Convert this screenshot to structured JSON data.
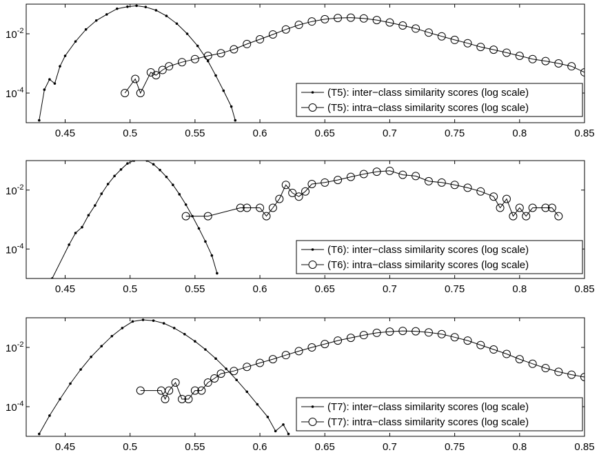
{
  "chart_data": [
    {
      "type": "line",
      "yscale": "log",
      "xlim": [
        0.42,
        0.85
      ],
      "ylim": [
        1e-05,
        0.1
      ],
      "xticks": [
        0.45,
        0.5,
        0.55,
        0.6,
        0.65,
        0.7,
        0.75,
        0.8,
        0.85
      ],
      "xtick_labels": [
        "0.45",
        "0.5",
        "0.55",
        "0.6",
        "0.65",
        "0.7",
        "0.75",
        "0.8",
        "0.85"
      ],
      "yticks": [
        {
          "base": "10",
          "exp": "-2",
          "value": 0.01
        },
        {
          "base": "10",
          "exp": "-4",
          "value": 0.0001
        }
      ],
      "grid": false,
      "legend_position": "bottom-right",
      "series": [
        {
          "name": "(T5): inter−class similarity scores (log scale)",
          "marker": "dot",
          "x": [
            0.43,
            0.434,
            0.438,
            0.442,
            0.446,
            0.45,
            0.458,
            0.466,
            0.474,
            0.482,
            0.49,
            0.498,
            0.505,
            0.512,
            0.52,
            0.528,
            0.536,
            0.544,
            0.552,
            0.56,
            0.566,
            0.572,
            0.578,
            0.581
          ],
          "y": [
            1.2e-05,
            0.00013,
            0.00029,
            0.00021,
            0.0008,
            0.0018,
            0.0055,
            0.014,
            0.028,
            0.045,
            0.07,
            0.082,
            0.088,
            0.08,
            0.062,
            0.04,
            0.022,
            0.01,
            0.0039,
            0.0012,
            0.00039,
            0.00012,
            3.5e-05,
            1.2e-05
          ]
        },
        {
          "name": "(T5): intra−class similarity scores (log scale)",
          "marker": "circle",
          "x": [
            0.496,
            0.504,
            0.508,
            0.516,
            0.52,
            0.525,
            0.53,
            0.54,
            0.55,
            0.56,
            0.57,
            0.58,
            0.59,
            0.6,
            0.61,
            0.62,
            0.63,
            0.64,
            0.65,
            0.66,
            0.67,
            0.68,
            0.69,
            0.7,
            0.71,
            0.72,
            0.73,
            0.74,
            0.75,
            0.76,
            0.77,
            0.78,
            0.79,
            0.8,
            0.81,
            0.82,
            0.83,
            0.84,
            0.85
          ],
          "y": [
            0.0001,
            0.0003,
            0.0001,
            0.0005,
            0.0004,
            0.0006,
            0.0008,
            0.0011,
            0.0014,
            0.0018,
            0.0022,
            0.003,
            0.0045,
            0.0065,
            0.0095,
            0.014,
            0.02,
            0.026,
            0.031,
            0.034,
            0.035,
            0.033,
            0.029,
            0.024,
            0.019,
            0.015,
            0.011,
            0.0082,
            0.0062,
            0.0048,
            0.0036,
            0.0029,
            0.0023,
            0.0018,
            0.0014,
            0.0012,
            0.001,
            0.0008,
            0.0005
          ]
        }
      ]
    },
    {
      "type": "line",
      "yscale": "log",
      "xlim": [
        0.42,
        0.85
      ],
      "ylim": [
        1e-05,
        0.1
      ],
      "xticks": [
        0.45,
        0.5,
        0.55,
        0.6,
        0.65,
        0.7,
        0.75,
        0.8,
        0.85
      ],
      "xtick_labels": [
        "0.45",
        "0.5",
        "0.55",
        "0.6",
        "0.65",
        "0.7",
        "0.75",
        "0.8",
        "0.85"
      ],
      "yticks": [
        {
          "base": "10",
          "exp": "-2",
          "value": 0.01
        },
        {
          "base": "10",
          "exp": "-4",
          "value": 0.0001
        }
      ],
      "grid": false,
      "legend_position": "bottom-right",
      "series": [
        {
          "name": "(T6): inter−class similarity scores (log scale)",
          "marker": "dot",
          "x": [
            0.44,
            0.453,
            0.458,
            0.463,
            0.468,
            0.473,
            0.478,
            0.483,
            0.488,
            0.493,
            0.498,
            0.503,
            0.508,
            0.513,
            0.518,
            0.523,
            0.528,
            0.533,
            0.538,
            0.543,
            0.548,
            0.553,
            0.558,
            0.563,
            0.567
          ],
          "y": [
            1e-05,
            0.00014,
            0.00035,
            0.00055,
            0.0014,
            0.003,
            0.0075,
            0.016,
            0.03,
            0.05,
            0.08,
            0.1,
            0.11,
            0.1,
            0.075,
            0.048,
            0.028,
            0.015,
            0.0072,
            0.0032,
            0.0013,
            0.0005,
            0.00018,
            6e-05,
            1.5e-05
          ]
        },
        {
          "name": "(T6): intra−class similarity scores (log scale)",
          "marker": "circle",
          "x": [
            0.543,
            0.56,
            0.585,
            0.59,
            0.6,
            0.605,
            0.61,
            0.615,
            0.62,
            0.625,
            0.63,
            0.635,
            0.64,
            0.65,
            0.66,
            0.67,
            0.68,
            0.69,
            0.7,
            0.71,
            0.72,
            0.73,
            0.74,
            0.75,
            0.76,
            0.77,
            0.78,
            0.785,
            0.79,
            0.795,
            0.8,
            0.805,
            0.81,
            0.82,
            0.825,
            0.83
          ],
          "y": [
            0.0013,
            0.0013,
            0.0025,
            0.0025,
            0.0025,
            0.0013,
            0.0025,
            0.005,
            0.015,
            0.008,
            0.006,
            0.009,
            0.016,
            0.018,
            0.022,
            0.028,
            0.035,
            0.042,
            0.045,
            0.033,
            0.03,
            0.02,
            0.018,
            0.015,
            0.012,
            0.009,
            0.006,
            0.0025,
            0.005,
            0.0013,
            0.0025,
            0.0013,
            0.0025,
            0.0025,
            0.0025,
            0.0013
          ]
        }
      ]
    },
    {
      "type": "line",
      "yscale": "log",
      "xlim": [
        0.42,
        0.85
      ],
      "ylim": [
        1e-05,
        0.1
      ],
      "xticks": [
        0.45,
        0.5,
        0.55,
        0.6,
        0.65,
        0.7,
        0.75,
        0.8,
        0.85
      ],
      "xtick_labels": [
        "0.45",
        "0.5",
        "0.55",
        "0.6",
        "0.65",
        "0.7",
        "0.75",
        "0.8",
        "0.85"
      ],
      "yticks": [
        {
          "base": "10",
          "exp": "-2",
          "value": 0.01
        },
        {
          "base": "10",
          "exp": "-4",
          "value": 0.0001
        }
      ],
      "grid": false,
      "legend_position": "bottom-right",
      "series": [
        {
          "name": "(T7): inter−class similarity scores (log scale)",
          "marker": "dot",
          "x": [
            0.43,
            0.438,
            0.446,
            0.454,
            0.462,
            0.47,
            0.478,
            0.486,
            0.494,
            0.502,
            0.51,
            0.518,
            0.526,
            0.534,
            0.542,
            0.55,
            0.558,
            0.566,
            0.574,
            0.582,
            0.59,
            0.598,
            0.606,
            0.612,
            0.618,
            0.622
          ],
          "y": [
            1.2e-05,
            5e-05,
            0.00018,
            0.0006,
            0.0018,
            0.0048,
            0.011,
            0.024,
            0.045,
            0.075,
            0.085,
            0.08,
            0.065,
            0.045,
            0.028,
            0.016,
            0.0085,
            0.0042,
            0.0019,
            0.0008,
            0.00032,
            0.00012,
            4.5e-05,
            1.5e-05,
            2.5e-05,
            1.2e-05
          ]
        },
        {
          "name": "(T7): intra−class similarity scores (log scale)",
          "marker": "circle",
          "x": [
            0.508,
            0.524,
            0.527,
            0.53,
            0.535,
            0.54,
            0.545,
            0.55,
            0.555,
            0.56,
            0.565,
            0.57,
            0.58,
            0.59,
            0.6,
            0.61,
            0.62,
            0.63,
            0.64,
            0.65,
            0.66,
            0.67,
            0.68,
            0.69,
            0.7,
            0.71,
            0.72,
            0.73,
            0.74,
            0.75,
            0.76,
            0.77,
            0.78,
            0.79,
            0.8,
            0.81,
            0.82,
            0.83,
            0.84,
            0.85
          ],
          "y": [
            0.00035,
            0.00035,
            0.00018,
            0.00035,
            0.00065,
            0.00018,
            0.00018,
            0.00035,
            0.00035,
            0.00065,
            0.0009,
            0.0013,
            0.0016,
            0.0022,
            0.003,
            0.004,
            0.0055,
            0.0075,
            0.01,
            0.013,
            0.017,
            0.021,
            0.026,
            0.031,
            0.034,
            0.036,
            0.035,
            0.032,
            0.028,
            0.022,
            0.017,
            0.012,
            0.0085,
            0.006,
            0.004,
            0.0028,
            0.002,
            0.0015,
            0.0012,
            0.001
          ]
        }
      ]
    }
  ]
}
